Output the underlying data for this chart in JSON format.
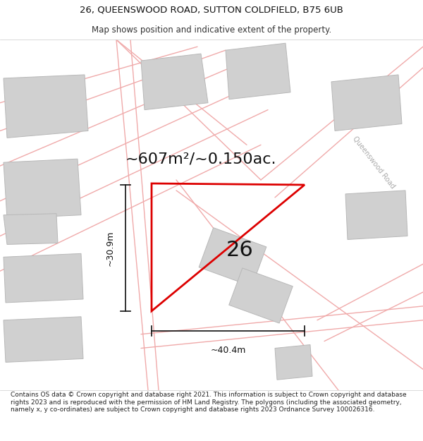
{
  "title_line1": "26, QUEENSWOOD ROAD, SUTTON COLDFIELD, B75 6UB",
  "title_line2": "Map shows position and indicative extent of the property.",
  "footer_text": "Contains OS data © Crown copyright and database right 2021. This information is subject to Crown copyright and database rights 2023 and is reproduced with the permission of HM Land Registry. The polygons (including the associated geometry, namely x, y co-ordinates) are subject to Crown copyright and database rights 2023 Ordnance Survey 100026316.",
  "area_label": "~607m²/~0.150ac.",
  "number_label": "26",
  "dim_vertical": "~30.9m",
  "dim_horizontal": "~40.4m",
  "road_label": "Queenswood Road",
  "map_bg": "#f9f6f6",
  "plot_edge_color": "#dd0000",
  "neighbor_fill": "#d0d0d0",
  "neighbor_edge": "#b8b8b8",
  "road_line_color": "#f0aaaa",
  "title_fontsize": 9.5,
  "footer_fontsize": 6.5,
  "area_fontsize": 16,
  "number_fontsize": 22,
  "dim_fontsize": 9
}
